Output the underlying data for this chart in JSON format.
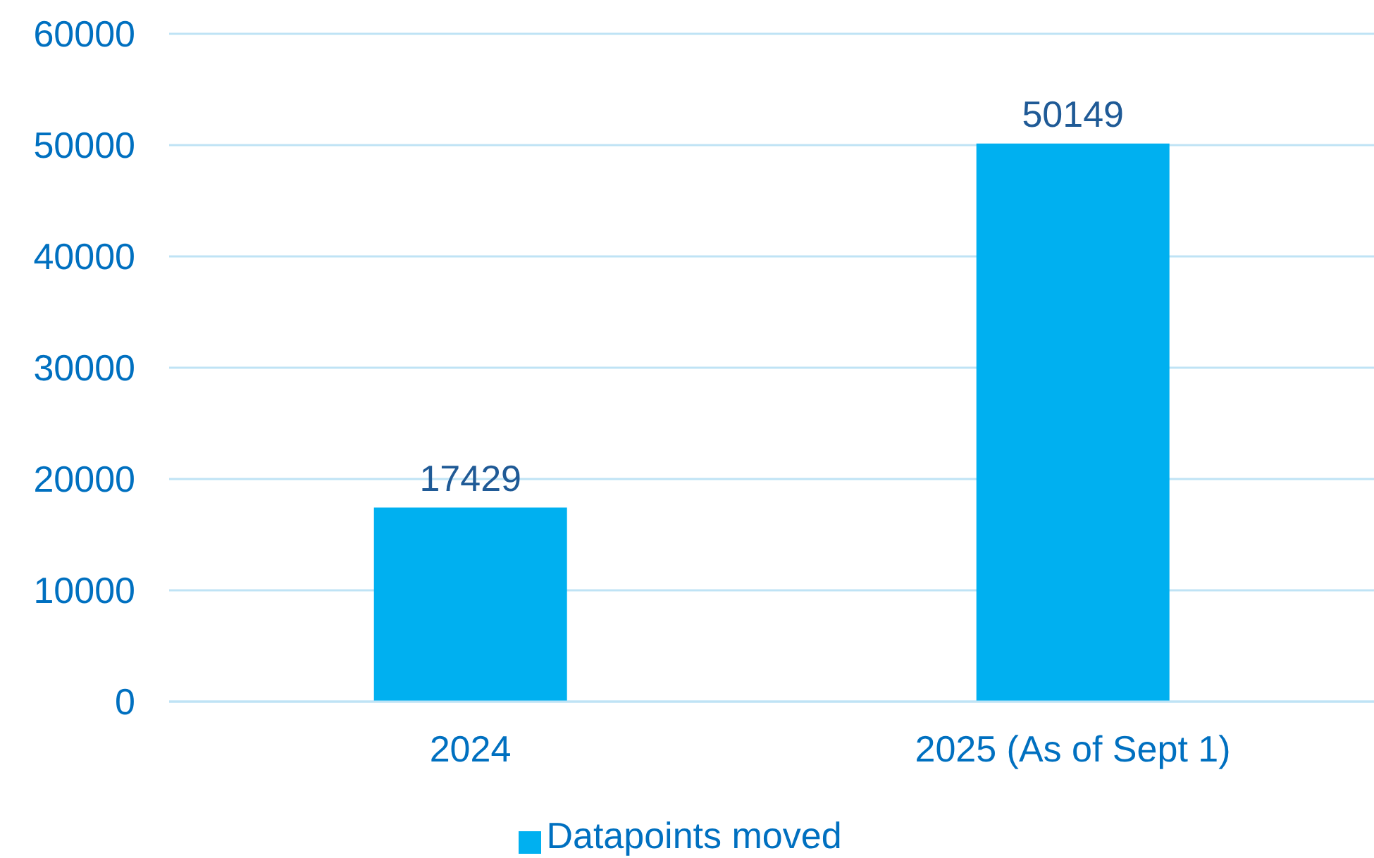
{
  "chart_data": {
    "type": "bar",
    "categories": [
      "2024",
      "2025 (As of Sept 1)"
    ],
    "series": [
      {
        "name": "Datapoints moved",
        "color": "#00b0f0",
        "values": [
          17429,
          50149
        ]
      }
    ],
    "ylim": [
      0,
      60000
    ],
    "yticks": [
      0,
      10000,
      20000,
      30000,
      40000,
      50000,
      60000
    ],
    "grid": "y",
    "legend": "bottom",
    "data_labels": true
  }
}
